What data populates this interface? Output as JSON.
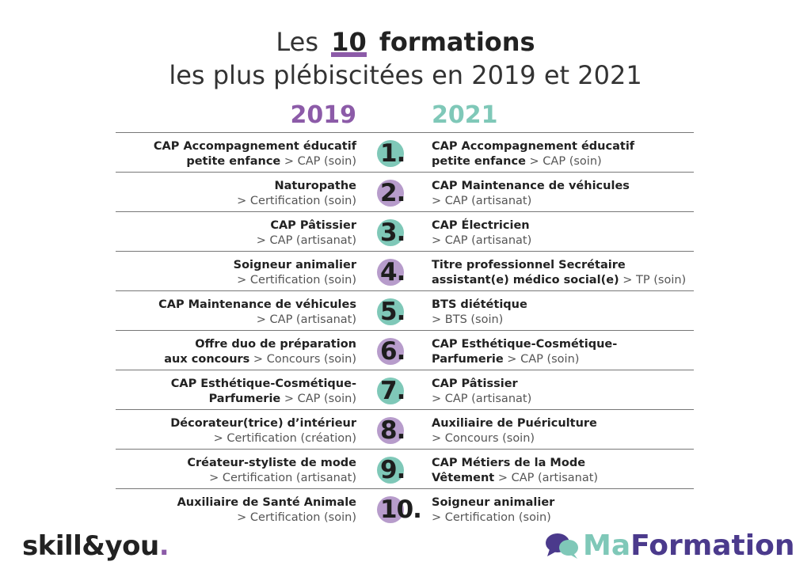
{
  "header": {
    "title_prefix": "Les",
    "title_number": "10",
    "title_suffix": "formations",
    "subtitle": "les plus plébiscitées en 2019 et 2021"
  },
  "columns": {
    "left_year": "2019",
    "right_year": "2021"
  },
  "rows": [
    {
      "rank": "1.",
      "left": {
        "line1_bold": "CAP Accompagnement éducatif",
        "line2_bold": "petite enfance",
        "line2_sub": " > CAP (soin)"
      },
      "right": {
        "line1_bold": "CAP Accompagnement éducatif",
        "line2_bold": "petite enfance",
        "line2_sub": " > CAP (soin)"
      }
    },
    {
      "rank": "2.",
      "left": {
        "line1_bold": "Naturopathe",
        "line2_bold": "",
        "line2_sub": "> Certification (soin)"
      },
      "right": {
        "line1_bold": "CAP Maintenance de véhicules",
        "line2_bold": "",
        "line2_sub": "> CAP (artisanat)"
      }
    },
    {
      "rank": "3.",
      "left": {
        "line1_bold": "CAP Pâtissier",
        "line2_bold": "",
        "line2_sub": "> CAP (artisanat)"
      },
      "right": {
        "line1_bold": "CAP Électricien",
        "line2_bold": "",
        "line2_sub": "> CAP (artisanat)"
      }
    },
    {
      "rank": "4.",
      "left": {
        "line1_bold": "Soigneur animalier",
        "line2_bold": "",
        "line2_sub": "> Certification (soin)"
      },
      "right": {
        "line1_bold": "Titre professionnel Secrétaire",
        "line2_bold": "assistant(e) médico social(e)",
        "line2_sub": " > TP (soin)"
      }
    },
    {
      "rank": "5.",
      "left": {
        "line1_bold": "CAP Maintenance de véhicules",
        "line2_bold": "",
        "line2_sub": "> CAP (artisanat)"
      },
      "right": {
        "line1_bold": "BTS diététique",
        "line2_bold": "",
        "line2_sub": "> BTS (soin)"
      }
    },
    {
      "rank": "6.",
      "left": {
        "line1_bold": "Offre duo de préparation",
        "line2_bold": "aux concours",
        "line2_sub": " > Concours (soin)"
      },
      "right": {
        "line1_bold": "CAP Esthétique-Cosmétique-",
        "line2_bold": "Parfumerie",
        "line2_sub": " > CAP (soin)"
      }
    },
    {
      "rank": "7.",
      "left": {
        "line1_bold": "CAP Esthétique-Cosmétique-",
        "line2_bold": "Parfumerie",
        "line2_sub": " > CAP (soin)"
      },
      "right": {
        "line1_bold": "CAP Pâtissier",
        "line2_bold": "",
        "line2_sub": "> CAP (artisanat)"
      }
    },
    {
      "rank": "8.",
      "left": {
        "line1_bold": "Décorateur(trice) d’intérieur",
        "line2_bold": "",
        "line2_sub": "> Certification (création)"
      },
      "right": {
        "line1_bold": "Auxiliaire de Puériculture",
        "line2_bold": "",
        "line2_sub": "> Concours (soin)"
      }
    },
    {
      "rank": "9.",
      "left": {
        "line1_bold": "Créateur-styliste de mode",
        "line2_bold": "",
        "line2_sub": "> Certification (artisanat)"
      },
      "right": {
        "line1_bold": "CAP Métiers de la Mode",
        "line2_bold": "Vêtement",
        "line2_sub": " > CAP (artisanat)"
      }
    },
    {
      "rank": "10.",
      "left": {
        "line1_bold": "Auxiliaire de Santé Animale",
        "line2_bold": "",
        "line2_sub": "> Certification (soin)"
      },
      "right": {
        "line1_bold": "Soigneur animalier",
        "line2_bold": "",
        "line2_sub": "> Certification (soin)"
      }
    }
  ],
  "footer": {
    "left_logo_main": "skill&you",
    "left_logo_dot": ".",
    "right_logo_ma": "Ma",
    "right_logo_formation": "Formation"
  },
  "colors": {
    "purple": "#8c5ba8",
    "teal": "#7fc8b8",
    "circle_teal": "#7fc8b8",
    "circle_purple": "#b79ccb",
    "dark_navy": "#4b3a8c"
  }
}
